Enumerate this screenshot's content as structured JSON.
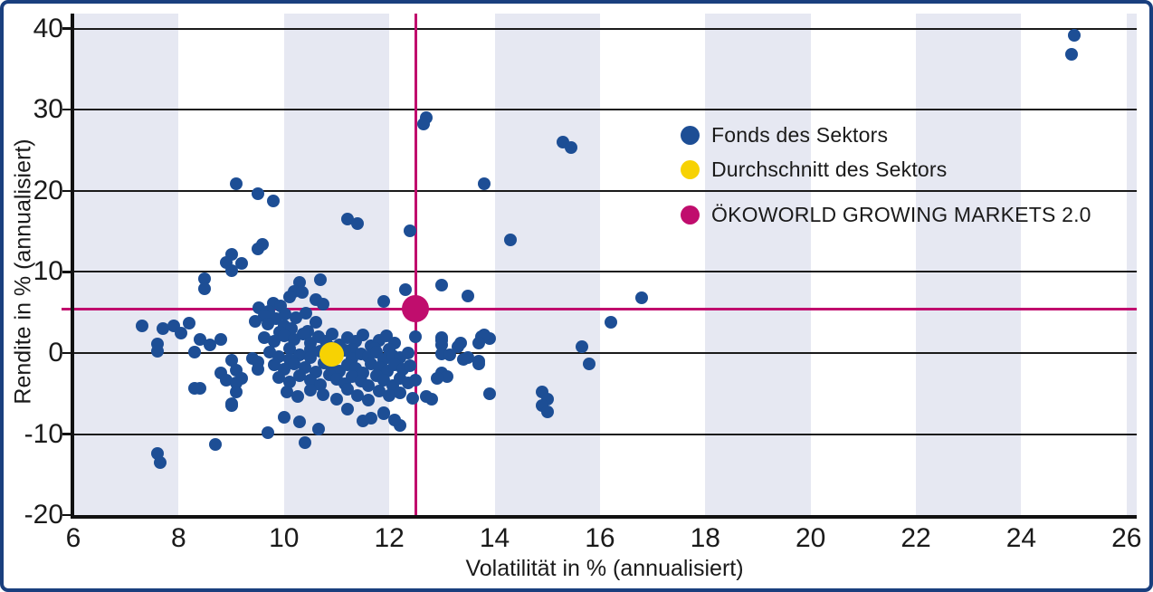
{
  "frame": {
    "border_color": "#1a3f7e",
    "background": "#ffffff"
  },
  "chart_data": {
    "type": "scatter",
    "title": "",
    "xlabel": "Volatilität in % (annualisiert)",
    "ylabel": "Rendite in % (annualisiert)",
    "xlim": [
      6,
      26.2
    ],
    "ylim": [
      -20,
      42
    ],
    "x_ticks": [
      6,
      8,
      10,
      12,
      14,
      16,
      18,
      20,
      22,
      24,
      26
    ],
    "y_ticks": [
      40,
      30,
      20,
      10,
      0,
      -10,
      -20
    ],
    "grid": "horizontal-only",
    "legend_position": "top-right",
    "band_color": "#e6e8f2",
    "bands_x": [
      [
        6,
        8
      ],
      [
        10,
        12
      ],
      [
        14,
        16
      ],
      [
        18,
        20
      ],
      [
        22,
        24
      ],
      [
        26,
        26.2
      ]
    ],
    "crosshair": {
      "x": 12.5,
      "y": 5.45,
      "color": "#c00d6d"
    },
    "series": [
      {
        "name": "Fonds des Sektors",
        "color": "#1d4e95",
        "marker_radius": 7,
        "points": [
          [
            25.0,
            39.2
          ],
          [
            24.95,
            36.8
          ],
          [
            12.7,
            29.0
          ],
          [
            12.65,
            28.2
          ],
          [
            15.3,
            26.0
          ],
          [
            15.45,
            25.3
          ],
          [
            13.8,
            20.9
          ],
          [
            9.1,
            20.9
          ],
          [
            9.5,
            19.6
          ],
          [
            9.8,
            18.7
          ],
          [
            11.2,
            16.5
          ],
          [
            11.4,
            16.0
          ],
          [
            12.4,
            15.1
          ],
          [
            14.3,
            14.0
          ],
          [
            9.6,
            13.4
          ],
          [
            9.5,
            12.8
          ],
          [
            9.0,
            12.2
          ],
          [
            8.9,
            11.2
          ],
          [
            9.2,
            11.1
          ],
          [
            9.0,
            10.2
          ],
          [
            8.5,
            9.1
          ],
          [
            8.5,
            7.9
          ],
          [
            10.3,
            8.7
          ],
          [
            10.7,
            9.0
          ],
          [
            12.3,
            7.8
          ],
          [
            13.0,
            8.4
          ],
          [
            10.2,
            7.6
          ],
          [
            10.35,
            7.5
          ],
          [
            10.1,
            6.9
          ],
          [
            10.6,
            6.6
          ],
          [
            11.9,
            6.4
          ],
          [
            9.8,
            6.1
          ],
          [
            10.75,
            6.0
          ],
          [
            13.5,
            7.0
          ],
          [
            16.8,
            6.8
          ],
          [
            16.2,
            3.8
          ],
          [
            15.65,
            0.8
          ],
          [
            15.8,
            -1.35
          ],
          [
            13.75,
            2.05
          ],
          [
            13.9,
            1.8
          ],
          [
            13.8,
            2.2
          ],
          [
            12.5,
            2.0
          ],
          [
            13.0,
            1.9
          ],
          [
            13.35,
            1.2
          ],
          [
            13.7,
            1.2
          ],
          [
            13.0,
            1.6
          ],
          [
            13.0,
            1.0
          ],
          [
            13.3,
            0.8
          ],
          [
            13.0,
            -0.1
          ],
          [
            13.15,
            -0.25
          ],
          [
            13.5,
            -0.6
          ],
          [
            13.4,
            -0.8
          ],
          [
            13.7,
            -1.0
          ],
          [
            13.7,
            -1.3
          ],
          [
            13.0,
            -2.4
          ],
          [
            13.1,
            -2.9
          ],
          [
            12.9,
            -3.1
          ],
          [
            13.9,
            -5.0
          ],
          [
            14.9,
            -4.8
          ],
          [
            15.0,
            -5.7
          ],
          [
            14.9,
            -6.5
          ],
          [
            15.0,
            -7.3
          ],
          [
            7.3,
            3.3
          ],
          [
            7.7,
            3.0
          ],
          [
            7.9,
            3.4
          ],
          [
            8.05,
            2.5
          ],
          [
            8.2,
            3.7
          ],
          [
            7.6,
            1.1
          ],
          [
            7.6,
            0.2
          ],
          [
            8.4,
            1.7
          ],
          [
            8.6,
            1.0
          ],
          [
            8.8,
            1.7
          ],
          [
            8.3,
            0.1
          ],
          [
            8.8,
            -2.5
          ],
          [
            8.9,
            -3.3
          ],
          [
            9.0,
            -0.9
          ],
          [
            9.1,
            -2.1
          ],
          [
            9.2,
            -3.1
          ],
          [
            9.1,
            -3.7
          ],
          [
            9.1,
            -4.8
          ],
          [
            8.4,
            -4.4
          ],
          [
            9.0,
            -6.3
          ],
          [
            9.4,
            -0.7
          ],
          [
            9.5,
            -1.1
          ],
          [
            9.5,
            -2.0
          ],
          [
            8.3,
            -4.3
          ],
          [
            7.6,
            -12.4
          ],
          [
            7.65,
            -13.5
          ],
          [
            8.7,
            -11.3
          ],
          [
            10.4,
            -11.0
          ],
          [
            9.7,
            -9.8
          ],
          [
            10.65,
            -9.4
          ],
          [
            9.0,
            -6.5
          ],
          [
            10.0,
            -7.9
          ],
          [
            10.3,
            -8.5
          ],
          [
            11.2,
            -6.9
          ],
          [
            11.65,
            -8.0
          ],
          [
            11.9,
            -7.5
          ],
          [
            12.2,
            -8.9
          ],
          [
            11.9,
            -7.4
          ],
          [
            12.1,
            -8.3
          ],
          [
            11.5,
            -8.4
          ],
          [
            12.7,
            -5.4
          ],
          [
            12.8,
            -5.7
          ],
          [
            9.52,
            5.6
          ],
          [
            9.72,
            5.15
          ],
          [
            9.93,
            5.75
          ],
          [
            9.62,
            4.6
          ],
          [
            9.85,
            4.2
          ],
          [
            10.02,
            4.85
          ],
          [
            9.45,
            3.9
          ],
          [
            9.7,
            3.55
          ],
          [
            10.0,
            3.4
          ],
          [
            10.22,
            4.4
          ],
          [
            10.42,
            4.95
          ],
          [
            10.15,
            3.0
          ],
          [
            9.92,
            2.6
          ],
          [
            10.45,
            2.7
          ],
          [
            10.6,
            3.85
          ],
          [
            9.63,
            1.9
          ],
          [
            9.82,
            1.4
          ],
          [
            10.0,
            2.1
          ],
          [
            10.2,
            1.7
          ],
          [
            10.36,
            2.3
          ],
          [
            10.5,
            1.2
          ],
          [
            10.66,
            2.0
          ],
          [
            10.8,
            1.5
          ],
          [
            10.92,
            2.35
          ],
          [
            11.05,
            1.0
          ],
          [
            11.2,
            1.9
          ],
          [
            11.36,
            1.45
          ],
          [
            11.5,
            2.2
          ],
          [
            11.66,
            0.9
          ],
          [
            11.8,
            1.6
          ],
          [
            11.95,
            2.1
          ],
          [
            12.1,
            1.2
          ],
          [
            10.1,
            0.6
          ],
          [
            10.5,
            0.5
          ],
          [
            10.9,
            0.7
          ],
          [
            11.3,
            0.5
          ],
          [
            11.72,
            0.6
          ],
          [
            12.0,
            0.45
          ],
          [
            9.73,
            0.1
          ],
          [
            9.9,
            -0.4
          ],
          [
            10.1,
            -0.75
          ],
          [
            10.3,
            -0.2
          ],
          [
            10.5,
            -0.6
          ],
          [
            10.7,
            0.2
          ],
          [
            10.86,
            -0.85
          ],
          [
            11.0,
            -0.3
          ],
          [
            11.16,
            0.3
          ],
          [
            11.3,
            -0.7
          ],
          [
            11.46,
            -0.1
          ],
          [
            11.6,
            -0.5
          ],
          [
            11.76,
            0.1
          ],
          [
            11.9,
            -0.8
          ],
          [
            12.06,
            -0.3
          ],
          [
            12.2,
            -0.6
          ],
          [
            12.36,
            0.0
          ],
          [
            9.82,
            -1.5
          ],
          [
            10.0,
            -2.0
          ],
          [
            10.2,
            -1.3
          ],
          [
            10.4,
            -1.8
          ],
          [
            10.6,
            -2.3
          ],
          [
            10.76,
            -1.2
          ],
          [
            10.9,
            -1.7
          ],
          [
            11.06,
            -2.2
          ],
          [
            11.2,
            -1.4
          ],
          [
            11.36,
            -1.9
          ],
          [
            11.5,
            -2.4
          ],
          [
            11.66,
            -1.3
          ],
          [
            11.8,
            -1.8
          ],
          [
            11.96,
            -2.25
          ],
          [
            12.1,
            -1.5
          ],
          [
            12.26,
            -2.0
          ],
          [
            12.4,
            -1.6
          ],
          [
            9.9,
            -3.0
          ],
          [
            10.1,
            -3.6
          ],
          [
            10.3,
            -2.8
          ],
          [
            10.5,
            -3.3
          ],
          [
            10.7,
            -3.9
          ],
          [
            10.86,
            -2.7
          ],
          [
            11.0,
            -3.2
          ],
          [
            11.16,
            -3.8
          ],
          [
            11.3,
            -2.9
          ],
          [
            11.46,
            -3.5
          ],
          [
            11.6,
            -4.05
          ],
          [
            11.76,
            -2.8
          ],
          [
            11.9,
            -3.4
          ],
          [
            12.06,
            -4.0
          ],
          [
            12.2,
            -3.1
          ],
          [
            12.36,
            -3.7
          ],
          [
            12.5,
            -3.3
          ],
          [
            10.05,
            -4.8
          ],
          [
            10.27,
            -5.4
          ],
          [
            10.5,
            -4.6
          ],
          [
            10.75,
            -5.1
          ],
          [
            11.0,
            -5.65
          ],
          [
            11.2,
            -4.5
          ],
          [
            11.4,
            -5.2
          ],
          [
            11.6,
            -5.75
          ],
          [
            11.8,
            -4.7
          ],
          [
            12.0,
            -5.3
          ],
          [
            12.2,
            -4.9
          ],
          [
            12.45,
            -5.55
          ]
        ]
      },
      {
        "name": "Durchschnitt des Sektors",
        "color": "#f7d203",
        "marker_radius": 13.5,
        "points": [
          [
            10.9,
            -0.2
          ]
        ]
      },
      {
        "name": "ÖKOWORLD GROWING MARKETS 2.0",
        "color": "#c00d6d",
        "marker_radius": 15,
        "points": [
          [
            12.5,
            5.45
          ]
        ]
      }
    ]
  }
}
